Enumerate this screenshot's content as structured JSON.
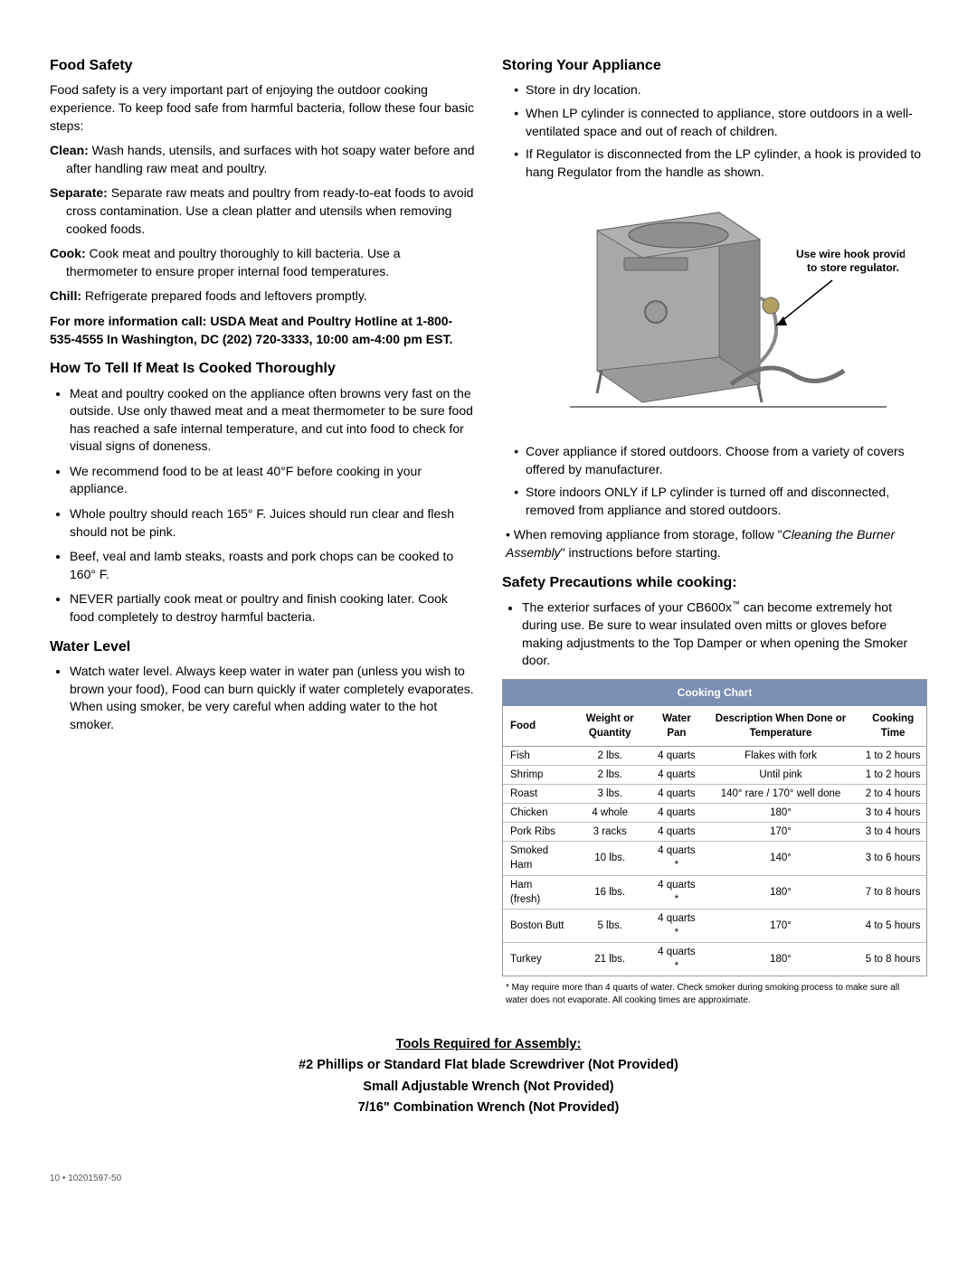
{
  "left": {
    "foodSafety": {
      "heading": "Food Safety",
      "intro": "Food safety is a very important part of enjoying the outdoor cooking experience. To keep food safe from harmful bacteria, follow these four basic steps:",
      "steps": [
        {
          "label": "Clean:",
          "text": " Wash hands, utensils, and surfaces with hot soapy water before and after handling raw meat and poultry."
        },
        {
          "label": "Separate:",
          "text": " Separate raw meats and poultry from ready-to-eat foods to avoid cross contamination. Use a clean platter and utensils when removing cooked foods."
        },
        {
          "label": "Cook:",
          "text": " Cook meat and poultry thoroughly to kill bacteria. Use a thermometer to ensure proper internal food temperatures."
        },
        {
          "label": "Chill:",
          "text": " Refrigerate prepared foods and leftovers promptly."
        }
      ],
      "moreInfo": "For more information call: USDA Meat and Poultry Hotline at 1-800-535-4555 In Washington, DC (202) 720-3333, 10:00 am-4:00 pm EST."
    },
    "howToTell": {
      "heading": "How To Tell If Meat Is Cooked Thoroughly",
      "items": [
        "Meat and poultry cooked on the appliance often browns very fast on the outside. Use only thawed meat and a meat thermometer to be sure food has reached a safe internal temperature, and cut into food to check for visual signs of doneness.",
        "We recommend food to be at least 40°F before cooking in your appliance.",
        "Whole poultry should reach 165° F.  Juices should run clear and flesh should not be pink.",
        "Beef, veal and lamb steaks, roasts and pork chops can be cooked to 160° F.",
        "NEVER partially cook meat or poultry and finish cooking later. Cook food completely to destroy harmful bacteria."
      ]
    },
    "waterLevel": {
      "heading": "Water Level",
      "items": [
        "Watch water level. Always keep water in water pan (unless you wish to brown your food), Food can burn quickly if water completely evaporates. When using smoker, be very careful when adding water to the hot smoker."
      ]
    }
  },
  "right": {
    "storing": {
      "heading": "Storing Your Appliance",
      "items1": [
        "Store in dry location.",
        "When LP cylinder is connected to appliance, store outdoors in a well-ventilated space and out of reach of children.",
        "If Regulator is disconnected from the LP cylinder, a hook is provided to hang Regulator from the handle as shown."
      ],
      "diagramLabel1": "Use wire hook provided",
      "diagramLabel2": "to store regulator.",
      "items2": [
        "Cover appliance if stored outdoors. Choose from a variety of covers offered by manufacturer.",
        "Store indoors ONLY if LP cylinder is turned off and disconnected, removed from appliance and stored outdoors."
      ],
      "item3PrefixBullet": "• ",
      "item3Prefix": "When removing appliance from storage, follow \"",
      "item3Italic": "Cleaning the Burner Assembly",
      "item3Suffix": "\" instructions before starting."
    },
    "safetyPrecautions": {
      "heading": "Safety Precautions while cooking:",
      "item_p1": "The exterior surfaces of your CB600x",
      "item_tm": "™",
      "item_p2": " can become extremely hot during use. Be sure to wear  insulated oven mitts or gloves before making adjustments to the Top Damper or when opening the Smoker door."
    },
    "cookingChart": {
      "title": "Cooking Chart",
      "columns": [
        "Food",
        "Weight or Quantity",
        "Water Pan",
        "Description When Done or Temperature",
        "Cooking Time"
      ],
      "rows": [
        [
          "Fish",
          "2 lbs.",
          "4 quarts",
          "Flakes with fork",
          "1 to 2 hours"
        ],
        [
          "Shrimp",
          "2 lbs.",
          "4 quarts",
          "Until pink",
          "1 to 2 hours"
        ],
        [
          "Roast",
          "3 lbs.",
          "4 quarts",
          "140° rare / 170° well done",
          "2 to 4 hours"
        ],
        [
          "Chicken",
          "4 whole",
          "4 quarts",
          "180°",
          "3 to 4 hours"
        ],
        [
          "Pork Ribs",
          "3 racks",
          "4 quarts",
          "170°",
          "3 to 4 hours"
        ],
        [
          "Smoked Ham",
          "10 lbs.",
          "4 quarts *",
          "140°",
          "3 to 6 hours"
        ],
        [
          "Ham (fresh)",
          "16 lbs.",
          "4 quarts *",
          "180°",
          "7 to 8 hours"
        ],
        [
          "Boston Butt",
          "5 lbs.",
          "4 quarts *",
          "170°",
          "4 to 5 hours"
        ],
        [
          "Turkey",
          "21 lbs.",
          "4 quarts *",
          "180°",
          "5 to 8 hours"
        ]
      ],
      "footnote": "* May require more than 4 quarts of water. Check smoker during smoking process to make sure all water does not evaporate. All cooking times are approximate."
    }
  },
  "tools": {
    "heading": "Tools Required for Assembly:",
    "lines": [
      "#2 Phillips or Standard Flat blade Screwdriver (Not Provided)",
      "Small Adjustable Wrench (Not Provided)",
      "7/16\" Combination Wrench (Not Provided)"
    ]
  },
  "footer": {
    "page": "10",
    "sep": " • ",
    "doc": "10201597-50"
  }
}
